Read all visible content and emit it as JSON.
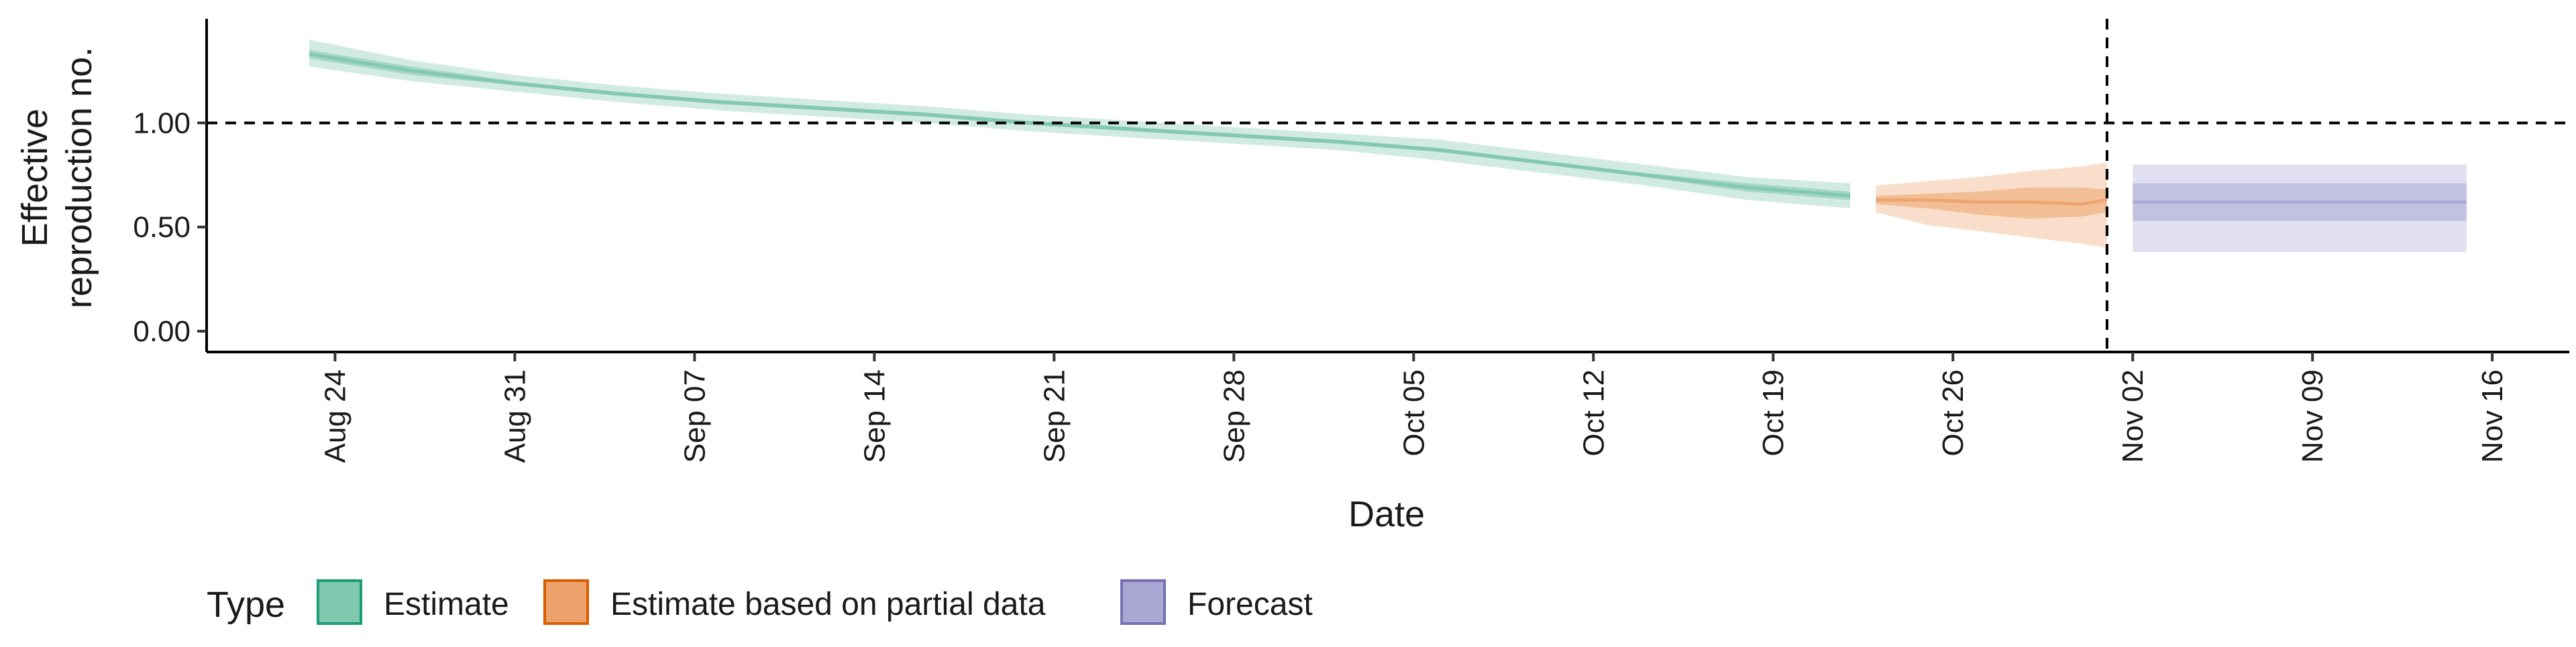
{
  "chart_data": {
    "type": "area",
    "xlabel": "Date",
    "ylabel_lines": [
      "Effective",
      "reproduction no."
    ],
    "x_domain": [
      "2020-08-19",
      "2020-11-19"
    ],
    "ylim": [
      -0.1,
      1.5
    ],
    "y_ticks": [
      {
        "value": 0.0,
        "label": "0.00"
      },
      {
        "value": 0.5,
        "label": "0.50"
      },
      {
        "value": 1.0,
        "label": "1.00"
      }
    ],
    "x_ticks": [
      {
        "date": "2020-08-24",
        "label": "Aug 24"
      },
      {
        "date": "2020-08-31",
        "label": "Aug 31"
      },
      {
        "date": "2020-09-07",
        "label": "Sep 07"
      },
      {
        "date": "2020-09-14",
        "label": "Sep 14"
      },
      {
        "date": "2020-09-21",
        "label": "Sep 21"
      },
      {
        "date": "2020-09-28",
        "label": "Sep 28"
      },
      {
        "date": "2020-10-05",
        "label": "Oct 05"
      },
      {
        "date": "2020-10-12",
        "label": "Oct 12"
      },
      {
        "date": "2020-10-19",
        "label": "Oct 19"
      },
      {
        "date": "2020-10-26",
        "label": "Oct 26"
      },
      {
        "date": "2020-11-02",
        "label": "Nov 02"
      },
      {
        "date": "2020-11-09",
        "label": "Nov 09"
      },
      {
        "date": "2020-11-16",
        "label": "Nov 16"
      }
    ],
    "reference_lines": {
      "horizontal_y": 1.0,
      "vertical_date": "2020-11-01",
      "style": "dashed"
    },
    "series": [
      {
        "name": "Estimate",
        "color": "#1b9e77",
        "fill": "#7fc7ad",
        "x": [
          "2020-08-23",
          "2020-08-27",
          "2020-08-31",
          "2020-09-04",
          "2020-09-08",
          "2020-09-12",
          "2020-09-16",
          "2020-09-20",
          "2020-09-24",
          "2020-09-28",
          "2020-10-02",
          "2020-10-06",
          "2020-10-10",
          "2020-10-14",
          "2020-10-18",
          "2020-10-22"
        ],
        "median": [
          1.33,
          1.25,
          1.19,
          1.14,
          1.1,
          1.07,
          1.04,
          1.0,
          0.97,
          0.94,
          0.91,
          0.87,
          0.81,
          0.75,
          0.69,
          0.65
        ],
        "lower_90": [
          1.27,
          1.2,
          1.15,
          1.1,
          1.06,
          1.03,
          1.0,
          0.96,
          0.93,
          0.9,
          0.87,
          0.82,
          0.76,
          0.7,
          0.63,
          0.59
        ],
        "upper_90": [
          1.4,
          1.3,
          1.23,
          1.18,
          1.14,
          1.11,
          1.08,
          1.04,
          1.01,
          0.98,
          0.95,
          0.92,
          0.86,
          0.8,
          0.74,
          0.71
        ],
        "lower_50": [
          1.31,
          1.23,
          1.18,
          1.13,
          1.09,
          1.06,
          1.03,
          0.99,
          0.96,
          0.93,
          0.9,
          0.86,
          0.8,
          0.74,
          0.67,
          0.63
        ],
        "upper_50": [
          1.35,
          1.27,
          1.2,
          1.15,
          1.11,
          1.08,
          1.05,
          1.01,
          0.98,
          0.95,
          0.92,
          0.88,
          0.82,
          0.76,
          0.71,
          0.67
        ]
      },
      {
        "name": "Estimate based on partial data",
        "color": "#d95f02",
        "fill": "#eda26b",
        "x": [
          "2020-10-23",
          "2020-10-25",
          "2020-10-27",
          "2020-10-29",
          "2020-10-31",
          "2020-11-01"
        ],
        "median": [
          0.63,
          0.63,
          0.62,
          0.62,
          0.61,
          0.63
        ],
        "lower_90": [
          0.57,
          0.51,
          0.48,
          0.45,
          0.42,
          0.4
        ],
        "upper_90": [
          0.7,
          0.72,
          0.74,
          0.77,
          0.79,
          0.81
        ],
        "lower_50": [
          0.61,
          0.59,
          0.56,
          0.54,
          0.55,
          0.57
        ],
        "upper_50": [
          0.65,
          0.66,
          0.67,
          0.69,
          0.69,
          0.68
        ]
      },
      {
        "name": "Forecast",
        "color": "#7570b3",
        "fill": "#aaa7d3",
        "x": [
          "2020-11-02",
          "2020-11-15"
        ],
        "median": [
          0.62,
          0.62
        ],
        "lower_90": [
          0.38,
          0.38
        ],
        "upper_90": [
          0.8,
          0.8
        ],
        "lower_50": [
          0.53,
          0.53
        ],
        "upper_50": [
          0.71,
          0.71
        ]
      }
    ],
    "legend": {
      "title": "Type",
      "position": "bottom-left",
      "items": [
        "Estimate",
        "Estimate based on partial data",
        "Forecast"
      ]
    },
    "grid": false
  }
}
